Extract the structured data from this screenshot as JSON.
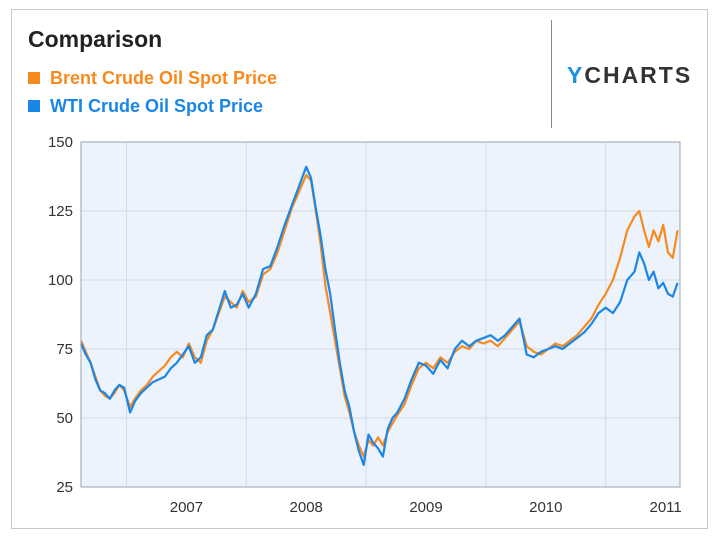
{
  "card": {
    "title": "Comparison"
  },
  "brand": {
    "prefix": "Y",
    "rest": "CHARTS"
  },
  "colors": {
    "brent": "#f78a1e",
    "wti": "#1a86e6",
    "plot_bg": "#edf3fc",
    "grid": "#d5dbe4"
  },
  "chart_data": {
    "type": "line",
    "title": "Comparison",
    "xlabel": "",
    "ylabel": "",
    "ylim": [
      25,
      150
    ],
    "yticks": [
      25,
      50,
      75,
      100,
      125,
      150
    ],
    "xlim": [
      2006.62,
      2011.62
    ],
    "xticks": [
      {
        "label": "2007",
        "value": 2007
      },
      {
        "label": "2008",
        "value": 2008
      },
      {
        "label": "2009",
        "value": 2009
      },
      {
        "label": "2010",
        "value": 2010
      },
      {
        "label": "2011",
        "value": 2011
      }
    ],
    "grid": true,
    "legend": "top-left",
    "series": [
      {
        "name": "Brent Crude Oil Spot Price",
        "points": [
          [
            2006.62,
            78
          ],
          [
            2006.66,
            74
          ],
          [
            2006.7,
            70
          ],
          [
            2006.74,
            65
          ],
          [
            2006.78,
            60
          ],
          [
            2006.82,
            58
          ],
          [
            2006.86,
            57
          ],
          [
            2006.9,
            59
          ],
          [
            2006.94,
            62
          ],
          [
            2006.98,
            60
          ],
          [
            2007.03,
            54
          ],
          [
            2007.07,
            57
          ],
          [
            2007.12,
            60
          ],
          [
            2007.17,
            62
          ],
          [
            2007.22,
            65
          ],
          [
            2007.27,
            67
          ],
          [
            2007.32,
            69
          ],
          [
            2007.37,
            72
          ],
          [
            2007.42,
            74
          ],
          [
            2007.47,
            72
          ],
          [
            2007.52,
            77
          ],
          [
            2007.57,
            72
          ],
          [
            2007.62,
            70
          ],
          [
            2007.67,
            78
          ],
          [
            2007.72,
            82
          ],
          [
            2007.77,
            88
          ],
          [
            2007.82,
            94
          ],
          [
            2007.87,
            92
          ],
          [
            2007.92,
            90
          ],
          [
            2007.97,
            96
          ],
          [
            2008.02,
            92
          ],
          [
            2008.08,
            94
          ],
          [
            2008.14,
            102
          ],
          [
            2008.2,
            104
          ],
          [
            2008.26,
            110
          ],
          [
            2008.32,
            118
          ],
          [
            2008.38,
            126
          ],
          [
            2008.44,
            132
          ],
          [
            2008.5,
            138
          ],
          [
            2008.54,
            136
          ],
          [
            2008.58,
            125
          ],
          [
            2008.62,
            113
          ],
          [
            2008.66,
            98
          ],
          [
            2008.7,
            88
          ],
          [
            2008.74,
            78
          ],
          [
            2008.78,
            68
          ],
          [
            2008.82,
            58
          ],
          [
            2008.86,
            52
          ],
          [
            2008.9,
            45
          ],
          [
            2008.94,
            40
          ],
          [
            2008.98,
            36
          ],
          [
            2009.02,
            42
          ],
          [
            2009.06,
            40
          ],
          [
            2009.1,
            43
          ],
          [
            2009.14,
            40
          ],
          [
            2009.18,
            45
          ],
          [
            2009.22,
            48
          ],
          [
            2009.26,
            51
          ],
          [
            2009.32,
            55
          ],
          [
            2009.38,
            62
          ],
          [
            2009.44,
            68
          ],
          [
            2009.5,
            70
          ],
          [
            2009.56,
            68
          ],
          [
            2009.62,
            72
          ],
          [
            2009.68,
            70
          ],
          [
            2009.74,
            74
          ],
          [
            2009.8,
            76
          ],
          [
            2009.86,
            75
          ],
          [
            2009.92,
            78
          ],
          [
            2009.98,
            77
          ],
          [
            2010.04,
            78
          ],
          [
            2010.1,
            76
          ],
          [
            2010.16,
            79
          ],
          [
            2010.22,
            82
          ],
          [
            2010.28,
            85
          ],
          [
            2010.34,
            76
          ],
          [
            2010.4,
            74
          ],
          [
            2010.46,
            73
          ],
          [
            2010.52,
            75
          ],
          [
            2010.58,
            77
          ],
          [
            2010.64,
            76
          ],
          [
            2010.7,
            78
          ],
          [
            2010.76,
            80
          ],
          [
            2010.82,
            83
          ],
          [
            2010.88,
            86
          ],
          [
            2010.94,
            91
          ],
          [
            2011.0,
            95
          ],
          [
            2011.06,
            100
          ],
          [
            2011.12,
            108
          ],
          [
            2011.18,
            118
          ],
          [
            2011.24,
            123
          ],
          [
            2011.28,
            125
          ],
          [
            2011.32,
            118
          ],
          [
            2011.36,
            112
          ],
          [
            2011.4,
            118
          ],
          [
            2011.44,
            114
          ],
          [
            2011.48,
            120
          ],
          [
            2011.52,
            110
          ],
          [
            2011.56,
            108
          ],
          [
            2011.6,
            118
          ]
        ]
      },
      {
        "name": "WTI Crude Oil Spot Price",
        "points": [
          [
            2006.62,
            77
          ],
          [
            2006.66,
            73
          ],
          [
            2006.7,
            70
          ],
          [
            2006.74,
            64
          ],
          [
            2006.78,
            60
          ],
          [
            2006.82,
            59
          ],
          [
            2006.86,
            57
          ],
          [
            2006.9,
            60
          ],
          [
            2006.94,
            62
          ],
          [
            2006.98,
            61
          ],
          [
            2007.03,
            52
          ],
          [
            2007.07,
            56
          ],
          [
            2007.12,
            59
          ],
          [
            2007.17,
            61
          ],
          [
            2007.22,
            63
          ],
          [
            2007.27,
            64
          ],
          [
            2007.32,
            65
          ],
          [
            2007.37,
            68
          ],
          [
            2007.42,
            70
          ],
          [
            2007.47,
            73
          ],
          [
            2007.52,
            76
          ],
          [
            2007.57,
            70
          ],
          [
            2007.62,
            72
          ],
          [
            2007.67,
            80
          ],
          [
            2007.72,
            82
          ],
          [
            2007.77,
            89
          ],
          [
            2007.82,
            96
          ],
          [
            2007.87,
            90
          ],
          [
            2007.92,
            91
          ],
          [
            2007.97,
            95
          ],
          [
            2008.02,
            90
          ],
          [
            2008.08,
            95
          ],
          [
            2008.14,
            104
          ],
          [
            2008.2,
            105
          ],
          [
            2008.26,
            112
          ],
          [
            2008.32,
            120
          ],
          [
            2008.38,
            127
          ],
          [
            2008.44,
            134
          ],
          [
            2008.5,
            141
          ],
          [
            2008.54,
            137
          ],
          [
            2008.58,
            126
          ],
          [
            2008.62,
            116
          ],
          [
            2008.66,
            104
          ],
          [
            2008.7,
            95
          ],
          [
            2008.74,
            82
          ],
          [
            2008.78,
            70
          ],
          [
            2008.82,
            60
          ],
          [
            2008.86,
            54
          ],
          [
            2008.9,
            45
          ],
          [
            2008.94,
            38
          ],
          [
            2008.98,
            33
          ],
          [
            2009.02,
            44
          ],
          [
            2009.06,
            41
          ],
          [
            2009.1,
            39
          ],
          [
            2009.14,
            36
          ],
          [
            2009.18,
            46
          ],
          [
            2009.22,
            50
          ],
          [
            2009.26,
            52
          ],
          [
            2009.32,
            57
          ],
          [
            2009.38,
            64
          ],
          [
            2009.44,
            70
          ],
          [
            2009.5,
            69
          ],
          [
            2009.56,
            66
          ],
          [
            2009.62,
            71
          ],
          [
            2009.68,
            68
          ],
          [
            2009.74,
            75
          ],
          [
            2009.8,
            78
          ],
          [
            2009.86,
            76
          ],
          [
            2009.92,
            78
          ],
          [
            2009.98,
            79
          ],
          [
            2010.04,
            80
          ],
          [
            2010.1,
            78
          ],
          [
            2010.16,
            80
          ],
          [
            2010.22,
            83
          ],
          [
            2010.28,
            86
          ],
          [
            2010.34,
            73
          ],
          [
            2010.4,
            72
          ],
          [
            2010.46,
            74
          ],
          [
            2010.52,
            75
          ],
          [
            2010.58,
            76
          ],
          [
            2010.64,
            75
          ],
          [
            2010.7,
            77
          ],
          [
            2010.76,
            79
          ],
          [
            2010.82,
            81
          ],
          [
            2010.88,
            84
          ],
          [
            2010.94,
            88
          ],
          [
            2011.0,
            90
          ],
          [
            2011.06,
            88
          ],
          [
            2011.12,
            92
          ],
          [
            2011.18,
            100
          ],
          [
            2011.24,
            103
          ],
          [
            2011.28,
            110
          ],
          [
            2011.32,
            106
          ],
          [
            2011.36,
            100
          ],
          [
            2011.4,
            103
          ],
          [
            2011.44,
            97
          ],
          [
            2011.48,
            99
          ],
          [
            2011.52,
            95
          ],
          [
            2011.56,
            94
          ],
          [
            2011.6,
            99
          ]
        ]
      }
    ]
  }
}
